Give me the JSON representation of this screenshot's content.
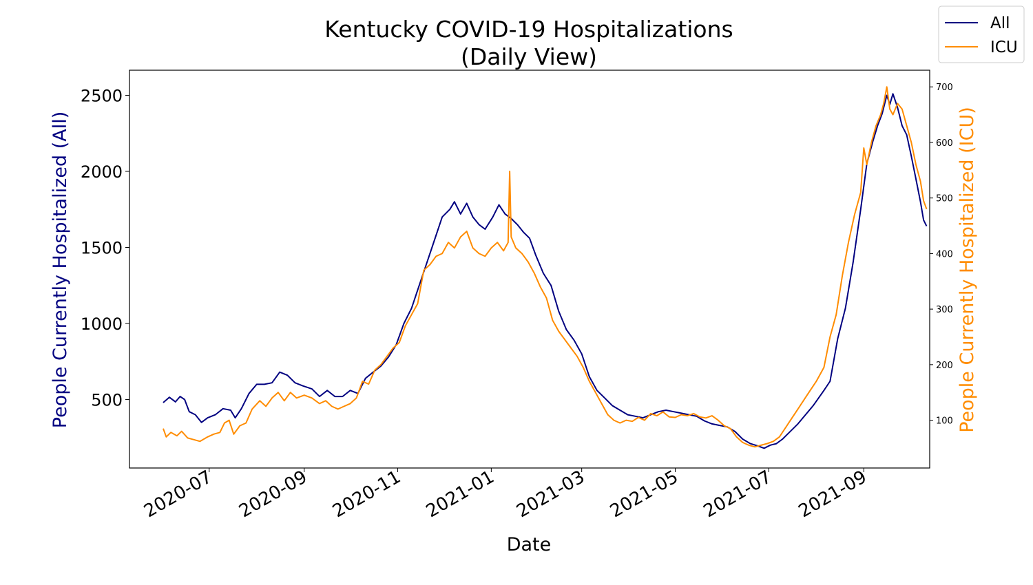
{
  "chart_data": {
    "type": "line",
    "title": [
      "Kentucky COVID-19 Hospitalizations",
      "(Daily View)"
    ],
    "xlabel": "Date",
    "ylabel_left": "People Currently Hospitalized (All)",
    "ylabel_right": "People Currently Hospitalized (ICU)",
    "x_ticks": [
      "2020-07",
      "2020-09",
      "2020-11",
      "2021-01",
      "2021-03",
      "2021-05",
      "2021-07",
      "2021-09"
    ],
    "x_range": [
      "2020-05-10",
      "2021-10-14"
    ],
    "y_left_ticks": [
      500,
      1000,
      1500,
      2000,
      2500
    ],
    "y_left_range": [
      50,
      2665
    ],
    "y_right_ticks": [
      100,
      200,
      300,
      400,
      500,
      600,
      700
    ],
    "y_right_range": [
      14,
      730
    ],
    "legend_position": "top-right, outside axes",
    "grid": false,
    "series": [
      {
        "name": "All",
        "axis": "left",
        "color": "#000080",
        "points": [
          [
            "2020-06-01",
            480
          ],
          [
            "2020-06-05",
            515
          ],
          [
            "2020-06-09",
            485
          ],
          [
            "2020-06-12",
            520
          ],
          [
            "2020-06-15",
            500
          ],
          [
            "2020-06-18",
            420
          ],
          [
            "2020-06-22",
            400
          ],
          [
            "2020-06-26",
            350
          ],
          [
            "2020-06-30",
            380
          ],
          [
            "2020-07-05",
            400
          ],
          [
            "2020-07-10",
            440
          ],
          [
            "2020-07-15",
            430
          ],
          [
            "2020-07-18",
            380
          ],
          [
            "2020-07-22",
            440
          ],
          [
            "2020-07-27",
            540
          ],
          [
            "2020-08-01",
            600
          ],
          [
            "2020-08-06",
            600
          ],
          [
            "2020-08-11",
            610
          ],
          [
            "2020-08-16",
            680
          ],
          [
            "2020-08-21",
            660
          ],
          [
            "2020-08-26",
            610
          ],
          [
            "2020-08-31",
            590
          ],
          [
            "2020-09-06",
            570
          ],
          [
            "2020-09-11",
            520
          ],
          [
            "2020-09-16",
            560
          ],
          [
            "2020-09-21",
            520
          ],
          [
            "2020-09-26",
            520
          ],
          [
            "2020-10-01",
            560
          ],
          [
            "2020-10-06",
            540
          ],
          [
            "2020-10-11",
            640
          ],
          [
            "2020-10-16",
            680
          ],
          [
            "2020-10-21",
            720
          ],
          [
            "2020-10-26",
            780
          ],
          [
            "2020-10-31",
            860
          ],
          [
            "2020-11-05",
            1000
          ],
          [
            "2020-11-10",
            1100
          ],
          [
            "2020-11-15",
            1250
          ],
          [
            "2020-11-20",
            1400
          ],
          [
            "2020-11-25",
            1550
          ],
          [
            "2020-11-30",
            1700
          ],
          [
            "2020-12-05",
            1750
          ],
          [
            "2020-12-08",
            1800
          ],
          [
            "2020-12-12",
            1720
          ],
          [
            "2020-12-16",
            1790
          ],
          [
            "2020-12-20",
            1700
          ],
          [
            "2020-12-24",
            1650
          ],
          [
            "2020-12-28",
            1620
          ],
          [
            "2021-01-02",
            1700
          ],
          [
            "2021-01-06",
            1780
          ],
          [
            "2021-01-10",
            1720
          ],
          [
            "2021-01-14",
            1690
          ],
          [
            "2021-01-18",
            1650
          ],
          [
            "2021-01-22",
            1600
          ],
          [
            "2021-01-26",
            1560
          ],
          [
            "2021-01-30",
            1450
          ],
          [
            "2021-02-04",
            1330
          ],
          [
            "2021-02-09",
            1250
          ],
          [
            "2021-02-14",
            1080
          ],
          [
            "2021-02-19",
            960
          ],
          [
            "2021-02-24",
            890
          ],
          [
            "2021-03-01",
            800
          ],
          [
            "2021-03-06",
            650
          ],
          [
            "2021-03-11",
            560
          ],
          [
            "2021-03-16",
            510
          ],
          [
            "2021-03-21",
            460
          ],
          [
            "2021-03-26",
            430
          ],
          [
            "2021-03-31",
            400
          ],
          [
            "2021-04-05",
            390
          ],
          [
            "2021-04-10",
            380
          ],
          [
            "2021-04-15",
            400
          ],
          [
            "2021-04-20",
            420
          ],
          [
            "2021-04-25",
            430
          ],
          [
            "2021-04-30",
            420
          ],
          [
            "2021-05-05",
            410
          ],
          [
            "2021-05-10",
            400
          ],
          [
            "2021-05-15",
            390
          ],
          [
            "2021-05-20",
            360
          ],
          [
            "2021-05-25",
            340
          ],
          [
            "2021-05-30",
            330
          ],
          [
            "2021-06-04",
            320
          ],
          [
            "2021-06-09",
            290
          ],
          [
            "2021-06-14",
            240
          ],
          [
            "2021-06-19",
            210
          ],
          [
            "2021-06-24",
            195
          ],
          [
            "2021-06-28",
            180
          ],
          [
            "2021-07-02",
            200
          ],
          [
            "2021-07-06",
            210
          ],
          [
            "2021-07-10",
            240
          ],
          [
            "2021-07-20",
            340
          ],
          [
            "2021-07-30",
            460
          ],
          [
            "2021-08-06",
            560
          ],
          [
            "2021-08-10",
            620
          ],
          [
            "2021-08-15",
            900
          ],
          [
            "2021-08-20",
            1100
          ],
          [
            "2021-08-25",
            1400
          ],
          [
            "2021-08-30",
            1750
          ],
          [
            "2021-09-03",
            2050
          ],
          [
            "2021-09-07",
            2200
          ],
          [
            "2021-09-10",
            2300
          ],
          [
            "2021-09-13",
            2380
          ],
          [
            "2021-09-16",
            2500
          ],
          [
            "2021-09-18",
            2440
          ],
          [
            "2021-09-20",
            2510
          ],
          [
            "2021-09-23",
            2420
          ],
          [
            "2021-09-26",
            2300
          ],
          [
            "2021-09-29",
            2240
          ],
          [
            "2021-10-02",
            2100
          ],
          [
            "2021-10-05",
            1950
          ],
          [
            "2021-10-08",
            1800
          ],
          [
            "2021-10-10",
            1680
          ],
          [
            "2021-10-12",
            1640
          ]
        ]
      },
      {
        "name": "ICU",
        "axis": "right",
        "color": "#ff8c00",
        "points": [
          [
            "2020-06-01",
            85
          ],
          [
            "2020-06-03",
            70
          ],
          [
            "2020-06-06",
            78
          ],
          [
            "2020-06-10",
            72
          ],
          [
            "2020-06-13",
            80
          ],
          [
            "2020-06-17",
            68
          ],
          [
            "2020-06-21",
            65
          ],
          [
            "2020-06-25",
            62
          ],
          [
            "2020-06-30",
            70
          ],
          [
            "2020-07-04",
            75
          ],
          [
            "2020-07-08",
            78
          ],
          [
            "2020-07-11",
            95
          ],
          [
            "2020-07-14",
            100
          ],
          [
            "2020-07-17",
            75
          ],
          [
            "2020-07-21",
            90
          ],
          [
            "2020-07-25",
            95
          ],
          [
            "2020-07-29",
            120
          ],
          [
            "2020-08-03",
            135
          ],
          [
            "2020-08-07",
            125
          ],
          [
            "2020-08-11",
            140
          ],
          [
            "2020-08-15",
            150
          ],
          [
            "2020-08-19",
            135
          ],
          [
            "2020-08-23",
            150
          ],
          [
            "2020-08-27",
            140
          ],
          [
            "2020-09-01",
            145
          ],
          [
            "2020-09-06",
            140
          ],
          [
            "2020-09-11",
            130
          ],
          [
            "2020-09-15",
            135
          ],
          [
            "2020-09-19",
            125
          ],
          [
            "2020-09-23",
            120
          ],
          [
            "2020-09-27",
            125
          ],
          [
            "2020-10-01",
            130
          ],
          [
            "2020-10-05",
            140
          ],
          [
            "2020-10-09",
            170
          ],
          [
            "2020-10-13",
            165
          ],
          [
            "2020-10-17",
            190
          ],
          [
            "2020-10-21",
            200
          ],
          [
            "2020-10-25",
            215
          ],
          [
            "2020-10-29",
            230
          ],
          [
            "2020-11-02",
            240
          ],
          [
            "2020-11-06",
            270
          ],
          [
            "2020-11-10",
            290
          ],
          [
            "2020-11-14",
            310
          ],
          [
            "2020-11-18",
            370
          ],
          [
            "2020-11-22",
            380
          ],
          [
            "2020-11-26",
            395
          ],
          [
            "2020-11-30",
            400
          ],
          [
            "2020-12-04",
            420
          ],
          [
            "2020-12-08",
            410
          ],
          [
            "2020-12-12",
            430
          ],
          [
            "2020-12-16",
            440
          ],
          [
            "2020-12-20",
            410
          ],
          [
            "2020-12-24",
            400
          ],
          [
            "2020-12-28",
            395
          ],
          [
            "2021-01-01",
            410
          ],
          [
            "2021-01-05",
            420
          ],
          [
            "2021-01-09",
            405
          ],
          [
            "2021-01-12",
            420
          ],
          [
            "2021-01-13",
            548
          ],
          [
            "2021-01-14",
            430
          ],
          [
            "2021-01-17",
            410
          ],
          [
            "2021-01-21",
            400
          ],
          [
            "2021-01-25",
            385
          ],
          [
            "2021-01-29",
            365
          ],
          [
            "2021-02-02",
            340
          ],
          [
            "2021-02-06",
            320
          ],
          [
            "2021-02-10",
            280
          ],
          [
            "2021-02-14",
            260
          ],
          [
            "2021-02-18",
            245
          ],
          [
            "2021-02-22",
            230
          ],
          [
            "2021-02-26",
            215
          ],
          [
            "2021-03-02",
            195
          ],
          [
            "2021-03-06",
            170
          ],
          [
            "2021-03-10",
            150
          ],
          [
            "2021-03-14",
            130
          ],
          [
            "2021-03-18",
            110
          ],
          [
            "2021-03-22",
            100
          ],
          [
            "2021-03-26",
            95
          ],
          [
            "2021-03-30",
            100
          ],
          [
            "2021-04-03",
            98
          ],
          [
            "2021-04-07",
            105
          ],
          [
            "2021-04-11",
            100
          ],
          [
            "2021-04-15",
            112
          ],
          [
            "2021-04-19",
            108
          ],
          [
            "2021-04-23",
            115
          ],
          [
            "2021-04-27",
            106
          ],
          [
            "2021-05-01",
            105
          ],
          [
            "2021-05-05",
            110
          ],
          [
            "2021-05-09",
            108
          ],
          [
            "2021-05-13",
            112
          ],
          [
            "2021-05-17",
            106
          ],
          [
            "2021-05-21",
            104
          ],
          [
            "2021-05-25",
            108
          ],
          [
            "2021-05-29",
            100
          ],
          [
            "2021-06-02",
            90
          ],
          [
            "2021-06-06",
            85
          ],
          [
            "2021-06-10",
            70
          ],
          [
            "2021-06-14",
            60
          ],
          [
            "2021-06-18",
            55
          ],
          [
            "2021-06-22",
            52
          ],
          [
            "2021-06-26",
            55
          ],
          [
            "2021-06-30",
            58
          ],
          [
            "2021-07-04",
            62
          ],
          [
            "2021-07-08",
            70
          ],
          [
            "2021-07-14",
            95
          ],
          [
            "2021-07-20",
            120
          ],
          [
            "2021-07-26",
            145
          ],
          [
            "2021-08-01",
            170
          ],
          [
            "2021-08-06",
            195
          ],
          [
            "2021-08-10",
            250
          ],
          [
            "2021-08-14",
            290
          ],
          [
            "2021-08-18",
            360
          ],
          [
            "2021-08-22",
            420
          ],
          [
            "2021-08-26",
            470
          ],
          [
            "2021-08-30",
            510
          ],
          [
            "2021-09-01",
            590
          ],
          [
            "2021-09-03",
            560
          ],
          [
            "2021-09-06",
            600
          ],
          [
            "2021-09-09",
            630
          ],
          [
            "2021-09-12",
            650
          ],
          [
            "2021-09-14",
            670
          ],
          [
            "2021-09-16",
            700
          ],
          [
            "2021-09-18",
            660
          ],
          [
            "2021-09-20",
            650
          ],
          [
            "2021-09-23",
            670
          ],
          [
            "2021-09-26",
            660
          ],
          [
            "2021-09-29",
            630
          ],
          [
            "2021-10-02",
            600
          ],
          [
            "2021-10-05",
            560
          ],
          [
            "2021-10-08",
            530
          ],
          [
            "2021-10-10",
            495
          ],
          [
            "2021-10-12",
            480
          ]
        ]
      }
    ]
  }
}
